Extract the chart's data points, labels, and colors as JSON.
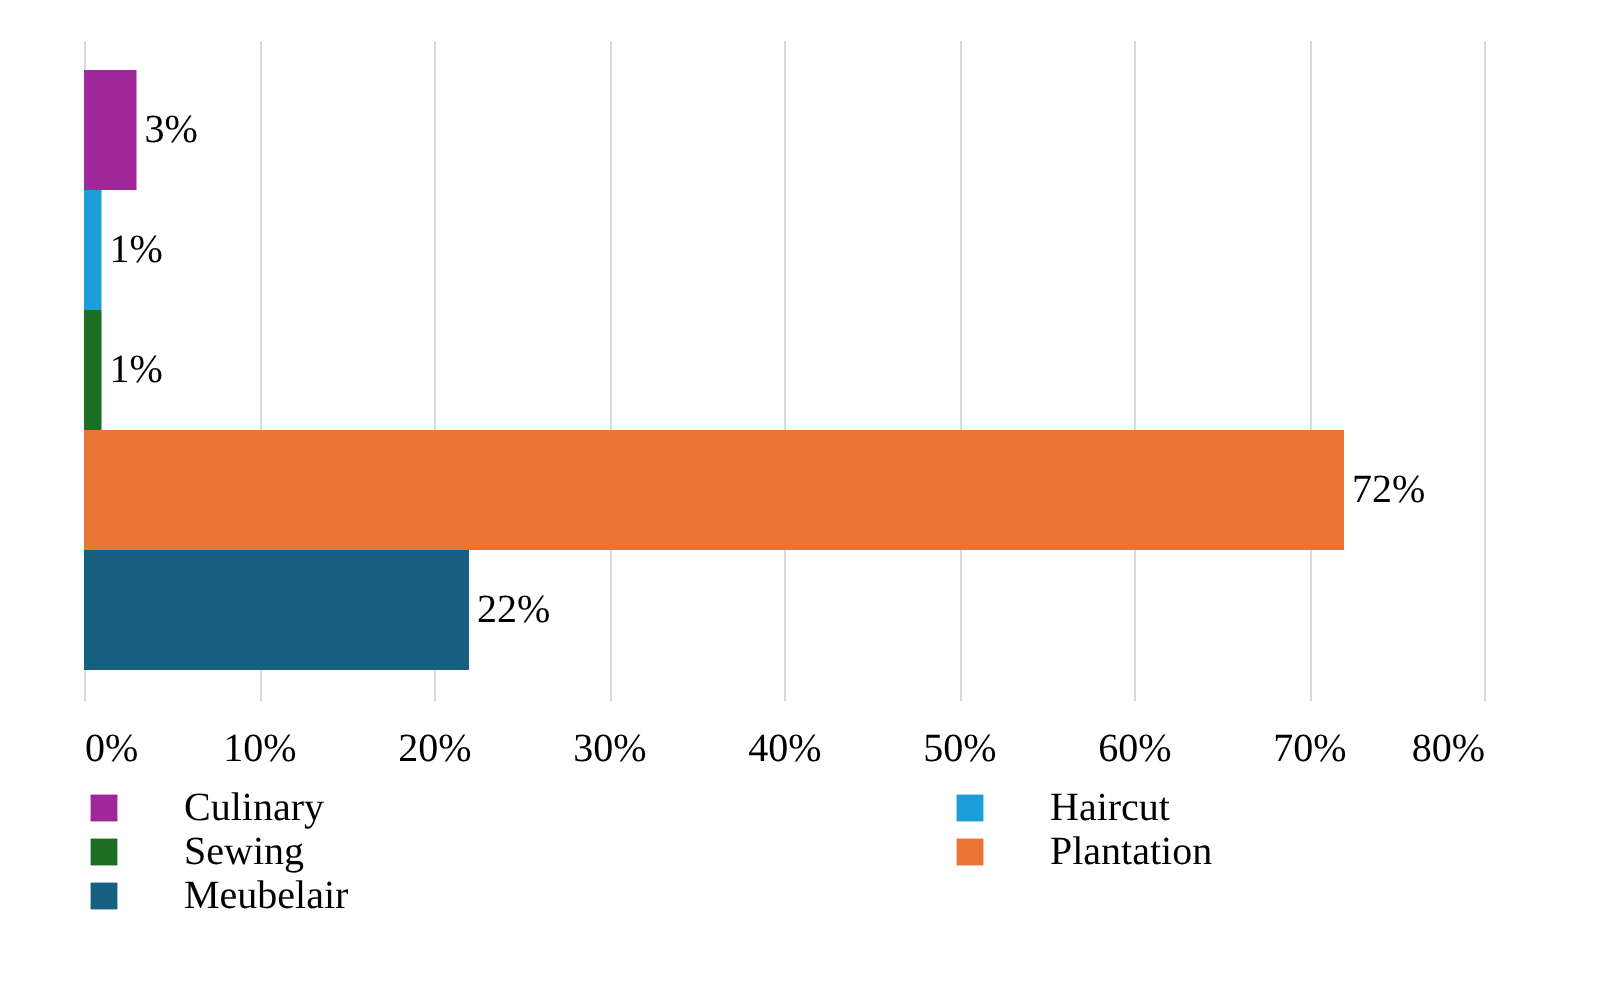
{
  "chart_data": {
    "type": "bar",
    "orientation": "horizontal",
    "categories": [
      null,
      null,
      null,
      null,
      null
    ],
    "series": [
      {
        "name": "Culinary",
        "color": "#a0279a",
        "values": [
          3,
          null,
          null,
          null,
          null
        ],
        "value_labels": [
          "3%",
          null,
          null,
          null,
          null
        ]
      },
      {
        "name": "Haircut",
        "color": "#1c9fd9",
        "values": [
          null,
          1,
          null,
          null,
          null
        ],
        "value_labels": [
          null,
          "1%",
          null,
          null,
          null
        ]
      },
      {
        "name": "Sewing",
        "color": "#1e6e23",
        "values": [
          null,
          null,
          1,
          null,
          null
        ],
        "value_labels": [
          null,
          null,
          "1%",
          null,
          null
        ]
      },
      {
        "name": "Plantation",
        "color": "#ea7434",
        "values": [
          null,
          null,
          null,
          72,
          null
        ],
        "value_labels": [
          null,
          null,
          null,
          "72%",
          null
        ]
      },
      {
        "name": "Meubelair",
        "color": "#175f80",
        "values": [
          null,
          null,
          null,
          null,
          22
        ],
        "value_labels": [
          null,
          null,
          null,
          null,
          "22%"
        ]
      }
    ],
    "xlim": [
      0,
      80
    ],
    "xticks": [
      {
        "value": 0,
        "label": "0%"
      },
      {
        "value": 10,
        "label": "10%"
      },
      {
        "value": 20,
        "label": "20%"
      },
      {
        "value": 30,
        "label": "30%"
      },
      {
        "value": 40,
        "label": "40%"
      },
      {
        "value": 50,
        "label": "50%"
      },
      {
        "value": 60,
        "label": "60%"
      },
      {
        "value": 70,
        "label": "70%"
      },
      {
        "value": 80,
        "label": "80%"
      }
    ],
    "grid": "x",
    "legend": "bottom"
  }
}
